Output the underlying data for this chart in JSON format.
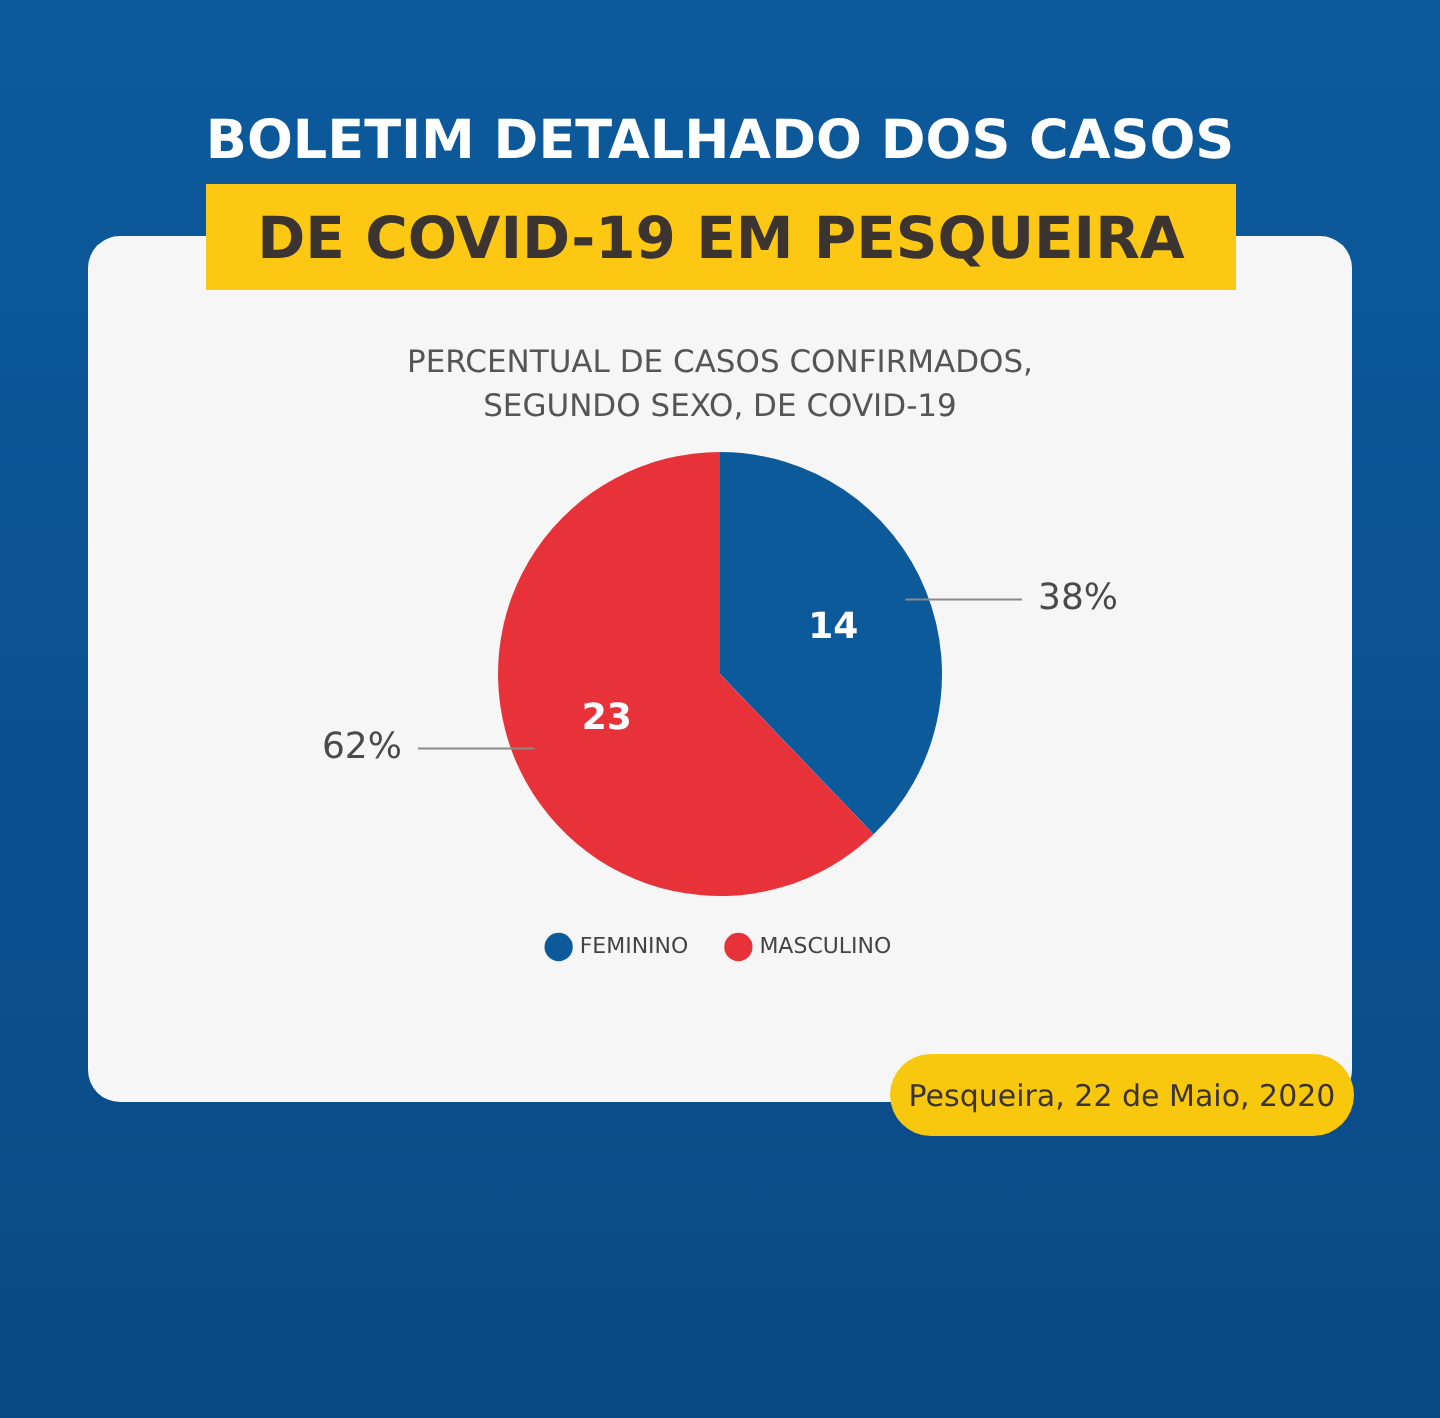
{
  "chart_data": {
    "type": "pie",
    "title": "BOLETIM DETALHADO DOS CASOS\nDE COVID-19 EM PESQUEIRA",
    "subtitle": "PERCENTUAL DE CASOS CONFIRMADOS,\nSEGUNDO SEXO, DE COVID-19",
    "categories": [
      "FEMININO",
      "MASCULINO"
    ],
    "values": [
      14,
      23
    ],
    "colors": [
      "#0d5a9a",
      "#e8323a"
    ],
    "data_labels": true,
    "legend": "bottom",
    "annotations": [
      {
        "text": "38%",
        "x": "FEMININO"
      },
      {
        "text": "62%",
        "x": "MASCULINO"
      },
      "Pesqueira, 22 de Maio, 2020"
    ]
  }
}
